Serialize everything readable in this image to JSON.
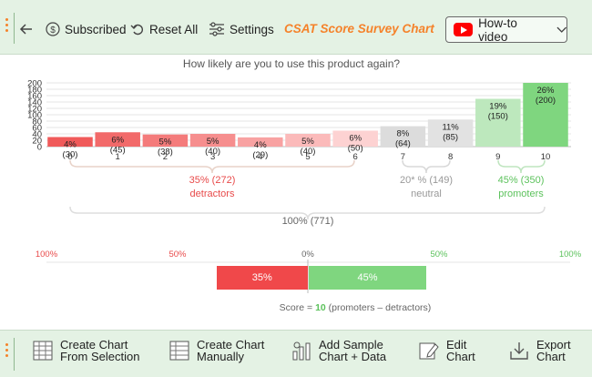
{
  "toolbar": {
    "subscribed_label": "Subscribed",
    "reset_label": "Reset All",
    "settings_label": "Settings",
    "app_title": "CSAT Score Survey Chart",
    "howto_label": "How-to video"
  },
  "bottom_bar": {
    "create_selection": [
      "Create Chart",
      "From Selection"
    ],
    "create_manual": [
      "Create Chart",
      "Manually"
    ],
    "add_sample": [
      "Add Sample",
      "Chart + Data"
    ],
    "edit_chart": [
      "Edit",
      "Chart"
    ],
    "export_chart": [
      "Export",
      "Chart"
    ]
  },
  "colors": {
    "toolbar_bg": "#e4f2e4",
    "title_orange": "#f5822a",
    "detractor_red": "#f05a5a",
    "neutral_gray": "#d8d8d8",
    "promoter_green": "#7fd67f"
  },
  "chart_data": {
    "type": "bar",
    "title": "How likely are you to use this product again?",
    "categories": [
      "0",
      "1",
      "2",
      "3",
      "4",
      "5",
      "6",
      "7",
      "8",
      "9",
      "10"
    ],
    "values": [
      30,
      45,
      38,
      40,
      29,
      40,
      50,
      64,
      85,
      150,
      200
    ],
    "percent_labels": [
      "4%",
      "6%",
      "5%",
      "5%",
      "4%",
      "5%",
      "6%",
      "8%",
      "11%",
      "19%",
      "26%"
    ],
    "count_labels": [
      "(30)",
      "(45)",
      "(38)",
      "(40)",
      "(29)",
      "(40)",
      "(50)",
      "(64)",
      "(85)",
      "(150)",
      "(200)"
    ],
    "bar_colors": [
      "#f05a5a",
      "#f26a6a",
      "#f47b7b",
      "#f68e8e",
      "#f8a2a2",
      "#fbbaba",
      "#fdd2d2",
      "#dcdcdc",
      "#e2e2e2",
      "#bde8bd",
      "#7fd67f"
    ],
    "y_ticks": [
      "0",
      "20",
      "40",
      "60",
      "80",
      "100",
      "120",
      "140",
      "160",
      "180",
      "200"
    ],
    "ylim": [
      0,
      200
    ],
    "grid": true,
    "groups": {
      "detractors": {
        "summary": "35% (272)",
        "name": "detractors"
      },
      "neutral": {
        "summary": "20* % (149)",
        "name": "neutral"
      },
      "promoters": {
        "summary": "45% (350)",
        "name": "promoters"
      },
      "total": "100% (771)"
    },
    "gauge": {
      "ticks": [
        "100%",
        "50%",
        "0%",
        "50%",
        "100%"
      ],
      "detractors_pct": 35,
      "promoters_pct": 45,
      "detractors_label": "35%",
      "promoters_label": "45%",
      "score_prefix": "Score = ",
      "score_value": "10",
      "score_suffix": " (promoters  –  detractors)"
    }
  }
}
